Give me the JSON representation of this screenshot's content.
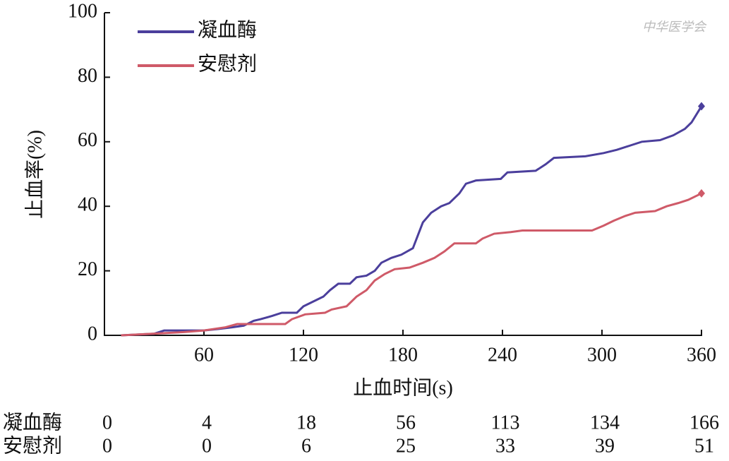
{
  "chart_data": {
    "type": "line",
    "y_label": "止血率(%)",
    "x_label": "止血时间(s)",
    "watermark": "中华医学会",
    "xlim": [
      0,
      360
    ],
    "xticks": [
      60,
      120,
      180,
      240,
      300,
      360
    ],
    "ylim": [
      0,
      100
    ],
    "yticks": [
      0,
      20,
      40,
      60,
      80,
      100
    ],
    "legend": "top-left",
    "series": [
      {
        "name": "凝血酶",
        "color": "#4b3f9c",
        "x": [
          10,
          30,
          36,
          60,
          69,
          77,
          84,
          90,
          94,
          101,
          107,
          116,
          120,
          126,
          132,
          136,
          141,
          148,
          152,
          158,
          163,
          167,
          173,
          179,
          186,
          189,
          192,
          197,
          203,
          208,
          214,
          218,
          224,
          239,
          243,
          260,
          266,
          271,
          290,
          301,
          309,
          318,
          324,
          335,
          343,
          350,
          354,
          360
        ],
        "values": [
          0,
          0.5,
          1.5,
          1.5,
          2,
          2.5,
          3,
          4.5,
          5,
          6,
          7,
          7,
          9,
          10.5,
          12,
          14,
          16,
          16,
          18,
          18.5,
          20,
          22.5,
          24,
          25,
          27,
          31,
          35,
          38,
          40,
          41,
          44,
          47,
          48,
          48.5,
          50.5,
          51,
          53,
          55,
          55.5,
          56.5,
          57.5,
          59,
          60,
          60.5,
          62,
          64,
          66,
          71
        ]
      },
      {
        "name": "安慰剂",
        "color": "#cf5a68",
        "x": [
          10,
          48,
          60,
          73,
          80,
          109,
          113,
          121,
          133,
          137,
          146,
          152,
          158,
          163,
          169,
          175,
          184,
          192,
          199,
          205,
          211,
          224,
          228,
          235,
          245,
          252,
          294,
          301,
          307,
          314,
          320,
          332,
          339,
          346,
          352,
          360
        ],
        "values": [
          0,
          1,
          1.5,
          2.5,
          3.5,
          3.5,
          5,
          6.5,
          7,
          8,
          9,
          12,
          14,
          17,
          19,
          20.5,
          21,
          22.5,
          24,
          26,
          28.5,
          28.5,
          30,
          31.5,
          32,
          32.5,
          32.5,
          34,
          35.5,
          37,
          38,
          38.5,
          40,
          41,
          42,
          44
        ]
      }
    ],
    "at_risk": {
      "rows": [
        {
          "label": "凝血酶",
          "values": [
            0,
            4,
            18,
            56,
            113,
            134,
            166
          ]
        },
        {
          "label": "安慰剂",
          "values": [
            0,
            0,
            6,
            25,
            33,
            39,
            51
          ]
        }
      ]
    }
  }
}
